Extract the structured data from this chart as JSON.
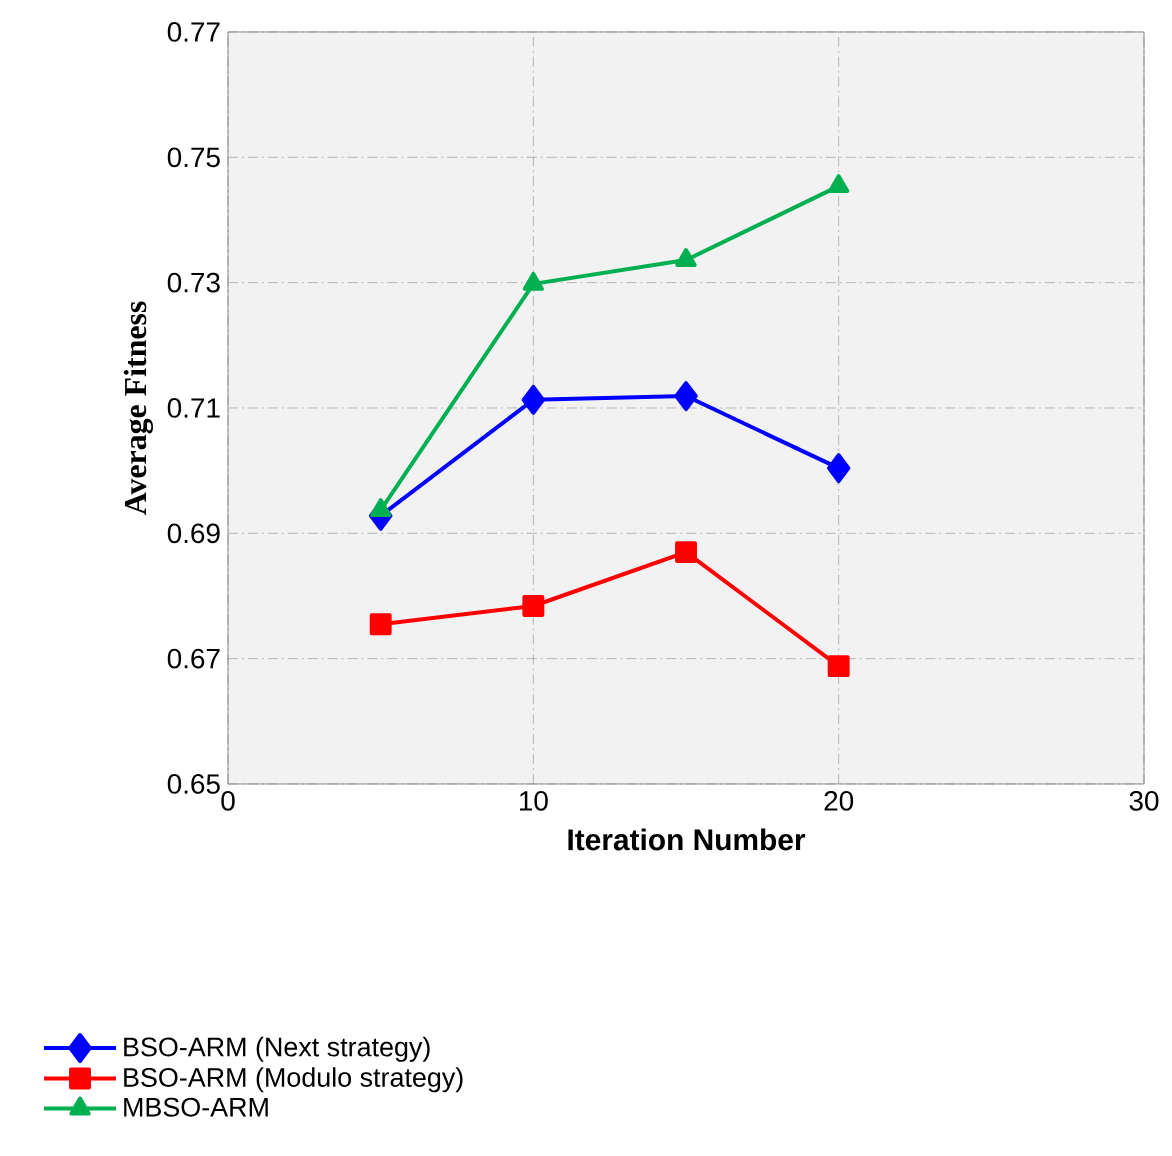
{
  "chart_data": {
    "type": "line",
    "xlabel": "Iteration Number",
    "ylabel": "Average Fitness",
    "x": [
      5,
      10,
      15,
      20
    ],
    "series": [
      {
        "name": "BSO-ARM (Next strategy)",
        "color": "#0000ff",
        "marker": "diamond",
        "values": [
          0.6928,
          0.7113,
          0.7119,
          0.7004
        ]
      },
      {
        "name": "BSO-ARM (Modulo strategy)",
        "color": "#ff0000",
        "marker": "square",
        "values": [
          0.6755,
          0.6784,
          0.687,
          0.6688
        ]
      },
      {
        "name": "MBSO-ARM",
        "color": "#00b050",
        "marker": "triangle",
        "values": [
          0.6937,
          0.7298,
          0.7336,
          0.7454
        ]
      }
    ],
    "xlim": [
      0,
      30
    ],
    "xticks": [
      0,
      10,
      20,
      30
    ],
    "ylim": [
      0.65,
      0.77
    ],
    "yticks": [
      {
        "value": 0.65,
        "label": "0.65"
      },
      {
        "value": 0.67,
        "label": "0.67"
      },
      {
        "value": 0.69,
        "label": "0.69"
      },
      {
        "value": 0.71,
        "label": "0.71"
      },
      {
        "value": 0.73,
        "label": "0.73"
      },
      {
        "value": 0.75,
        "label": "0.75"
      },
      {
        "value": 0.77,
        "label": "0.77"
      }
    ],
    "grid": true,
    "legend": "bottom"
  }
}
